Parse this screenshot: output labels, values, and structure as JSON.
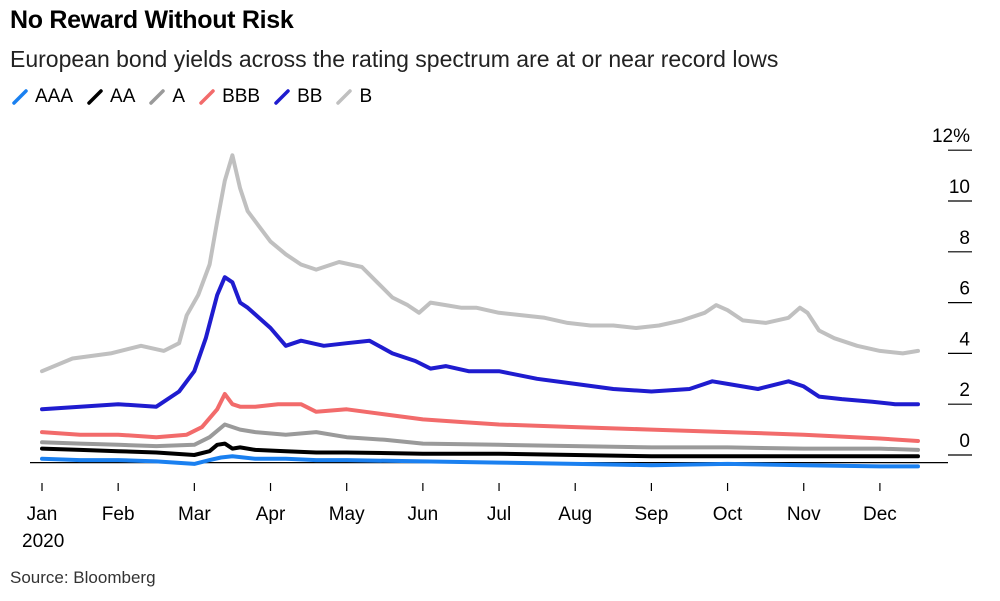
{
  "chart_data": {
    "type": "line",
    "title": "No Reward Without Risk",
    "subtitle": "European bond yields across the rating spectrum are at or near record lows",
    "source": "Source: Bloomberg",
    "ylabel": "",
    "xlabel": "",
    "y_unit": "%",
    "ylim": [
      -1,
      12.5
    ],
    "yticks": [
      0,
      2,
      4,
      6,
      8,
      10,
      12
    ],
    "ytick_labels": [
      "0",
      "2",
      "4",
      "6",
      "8",
      "10",
      "12%"
    ],
    "xlim": [
      0,
      11.5
    ],
    "xticks": [
      0,
      1,
      2,
      3,
      4,
      5,
      6,
      7,
      8,
      9,
      10,
      11
    ],
    "xtick_labels": [
      "Jan",
      "Feb",
      "Mar",
      "Apr",
      "May",
      "Jun",
      "Jul",
      "Aug",
      "Sep",
      "Oct",
      "Nov",
      "Dec"
    ],
    "year_label": "2020",
    "legend_position": "top-left",
    "grid": false,
    "series": [
      {
        "name": "B",
        "color": "#c0c0c0",
        "x": [
          0,
          0.4,
          0.9,
          1.3,
          1.6,
          1.8,
          1.9,
          2.05,
          2.2,
          2.3,
          2.4,
          2.5,
          2.6,
          2.7,
          2.85,
          3.0,
          3.2,
          3.4,
          3.6,
          3.9,
          4.2,
          4.4,
          4.6,
          4.8,
          4.95,
          5.1,
          5.3,
          5.5,
          5.7,
          6.0,
          6.3,
          6.6,
          6.9,
          7.2,
          7.5,
          7.8,
          8.1,
          8.4,
          8.7,
          8.85,
          9.0,
          9.2,
          9.5,
          9.8,
          9.95,
          10.05,
          10.2,
          10.4,
          10.7,
          11.0,
          11.3,
          11.5
        ],
        "y": [
          3.3,
          3.8,
          4.0,
          4.3,
          4.1,
          4.4,
          5.5,
          6.3,
          7.5,
          9.2,
          10.8,
          11.8,
          10.5,
          9.6,
          9.0,
          8.4,
          7.9,
          7.5,
          7.3,
          7.6,
          7.4,
          6.8,
          6.2,
          5.9,
          5.6,
          6.0,
          5.9,
          5.8,
          5.8,
          5.6,
          5.5,
          5.4,
          5.2,
          5.1,
          5.1,
          5.0,
          5.1,
          5.3,
          5.6,
          5.9,
          5.7,
          5.3,
          5.2,
          5.4,
          5.8,
          5.6,
          4.9,
          4.6,
          4.3,
          4.1,
          4.0,
          4.1
        ]
      },
      {
        "name": "BB",
        "color": "#1f1ccf",
        "x": [
          0,
          0.5,
          1.0,
          1.5,
          1.8,
          2.0,
          2.15,
          2.3,
          2.4,
          2.5,
          2.6,
          2.7,
          3.0,
          3.2,
          3.4,
          3.7,
          4.0,
          4.3,
          4.6,
          4.9,
          5.1,
          5.3,
          5.6,
          6.0,
          6.5,
          7.0,
          7.5,
          8.0,
          8.5,
          8.8,
          9.0,
          9.4,
          9.8,
          10.0,
          10.2,
          10.5,
          10.9,
          11.2,
          11.5
        ],
        "y": [
          1.8,
          1.9,
          2.0,
          1.9,
          2.5,
          3.3,
          4.6,
          6.3,
          7.0,
          6.8,
          6.0,
          5.8,
          5.0,
          4.3,
          4.5,
          4.3,
          4.4,
          4.5,
          4.0,
          3.7,
          3.4,
          3.5,
          3.3,
          3.3,
          3.0,
          2.8,
          2.6,
          2.5,
          2.6,
          2.9,
          2.8,
          2.6,
          2.9,
          2.7,
          2.3,
          2.2,
          2.1,
          2.0,
          2.0
        ]
      },
      {
        "name": "BBB",
        "color": "#f26b6b",
        "x": [
          0,
          0.5,
          1.0,
          1.5,
          1.9,
          2.1,
          2.3,
          2.4,
          2.5,
          2.6,
          2.8,
          3.1,
          3.4,
          3.6,
          4.0,
          4.5,
          5.0,
          5.5,
          6.0,
          7.0,
          8.0,
          9.0,
          10.0,
          11.0,
          11.5
        ],
        "y": [
          0.9,
          0.8,
          0.8,
          0.7,
          0.8,
          1.1,
          1.8,
          2.4,
          2.0,
          1.9,
          1.9,
          2.0,
          2.0,
          1.7,
          1.8,
          1.6,
          1.4,
          1.3,
          1.2,
          1.1,
          1.0,
          0.9,
          0.8,
          0.65,
          0.55
        ]
      },
      {
        "name": "A",
        "color": "#9a9a9a",
        "x": [
          0,
          0.5,
          1.0,
          1.5,
          2.0,
          2.2,
          2.4,
          2.6,
          2.8,
          3.2,
          3.6,
          4.0,
          4.5,
          5.0,
          6.0,
          7.0,
          8.0,
          9.0,
          10.0,
          11.0,
          11.5
        ],
        "y": [
          0.5,
          0.45,
          0.4,
          0.35,
          0.4,
          0.7,
          1.2,
          1.0,
          0.9,
          0.8,
          0.9,
          0.7,
          0.6,
          0.45,
          0.4,
          0.35,
          0.3,
          0.3,
          0.25,
          0.25,
          0.2
        ]
      },
      {
        "name": "AA",
        "color": "#000000",
        "x": [
          0,
          0.5,
          1.0,
          1.5,
          2.0,
          2.2,
          2.3,
          2.4,
          2.5,
          2.6,
          2.8,
          3.2,
          3.6,
          4.0,
          5.0,
          6.0,
          7.0,
          8.0,
          9.0,
          10.0,
          11.0,
          11.5
        ],
        "y": [
          0.25,
          0.2,
          0.15,
          0.1,
          0.0,
          0.15,
          0.4,
          0.45,
          0.25,
          0.3,
          0.2,
          0.15,
          0.1,
          0.1,
          0.05,
          0.05,
          0.0,
          -0.05,
          -0.05,
          -0.05,
          -0.05,
          -0.05
        ]
      },
      {
        "name": "AAA",
        "color": "#1a80f0",
        "x": [
          0,
          0.5,
          1.0,
          1.5,
          2.0,
          2.2,
          2.35,
          2.5,
          2.8,
          3.2,
          3.6,
          4.0,
          5.0,
          6.0,
          7.0,
          8.0,
          9.0,
          10.0,
          11.0,
          11.5
        ],
        "y": [
          -0.15,
          -0.2,
          -0.2,
          -0.25,
          -0.35,
          -0.2,
          -0.1,
          -0.05,
          -0.15,
          -0.15,
          -0.2,
          -0.2,
          -0.25,
          -0.3,
          -0.35,
          -0.4,
          -0.35,
          -0.4,
          -0.45,
          -0.45
        ]
      }
    ],
    "legend_order": [
      "AAA",
      "AA",
      "A",
      "BBB",
      "BB",
      "B"
    ]
  }
}
